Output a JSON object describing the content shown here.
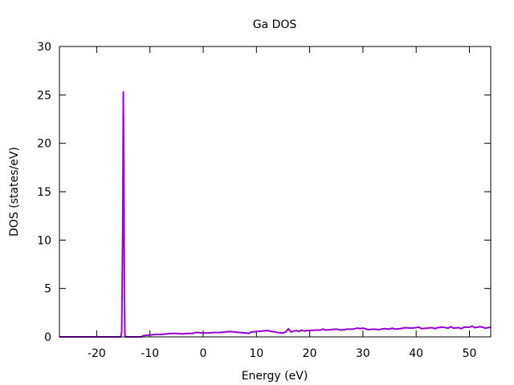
{
  "chart_data": {
    "type": "line",
    "title": "Ga DOS",
    "xlabel": "Energy (eV)",
    "ylabel": "DOS (states/eV)",
    "xlim": [
      -27,
      54
    ],
    "ylim": [
      0,
      30
    ],
    "xticks": [
      -20,
      -10,
      0,
      10,
      20,
      30,
      40,
      50
    ],
    "yticks": [
      0,
      5,
      10,
      15,
      20,
      25,
      30
    ],
    "xtick_labels": [
      "-20",
      "-10",
      "0",
      "10",
      "20",
      "30",
      "40",
      "50"
    ],
    "ytick_labels": [
      "0",
      "5",
      "10",
      "15",
      "20",
      "25",
      "30"
    ],
    "grid": false,
    "legend": "none",
    "series": [
      {
        "color": "#9400d3",
        "x": [
          -27,
          -15.5,
          -15.3,
          -15.1,
          -15.0,
          -14.9,
          -14.8,
          -14.7,
          -14.6,
          -14.5,
          -14.3,
          -11.6,
          -11.3,
          -11,
          -10,
          -9,
          -8,
          -7,
          -6,
          -5,
          -4,
          -3,
          -2,
          -1.5,
          -1,
          0,
          1,
          2,
          3,
          4,
          5,
          6,
          7,
          8,
          8.5,
          9,
          10,
          11,
          12,
          13,
          14,
          15,
          15.5,
          16,
          16.5,
          17,
          17.5,
          18,
          18.5,
          19,
          19.5,
          20,
          21,
          22,
          22.5,
          23,
          24,
          25,
          26,
          27,
          28,
          29,
          29.5,
          30,
          31,
          32,
          33,
          34,
          35,
          35.5,
          36,
          37,
          37.5,
          38,
          39,
          40,
          40.5,
          41,
          42,
          43,
          43.5,
          44,
          45,
          46,
          46.5,
          47,
          48,
          48.5,
          49,
          50,
          50.5,
          51,
          52,
          52.5,
          53,
          54
        ],
        "y": [
          0,
          0,
          0.5,
          12,
          25.3,
          18,
          4,
          0.3,
          0,
          0,
          0,
          0,
          0.1,
          0.15,
          0.2,
          0.25,
          0.25,
          0.3,
          0.35,
          0.35,
          0.3,
          0.35,
          0.35,
          0.45,
          0.45,
          0.4,
          0.4,
          0.45,
          0.45,
          0.5,
          0.55,
          0.5,
          0.45,
          0.4,
          0.35,
          0.5,
          0.55,
          0.6,
          0.65,
          0.55,
          0.45,
          0.4,
          0.5,
          0.85,
          0.5,
          0.6,
          0.65,
          0.55,
          0.7,
          0.6,
          0.65,
          0.65,
          0.7,
          0.7,
          0.8,
          0.7,
          0.75,
          0.8,
          0.7,
          0.8,
          0.8,
          0.9,
          0.85,
          0.9,
          0.75,
          0.8,
          0.75,
          0.85,
          0.8,
          0.9,
          0.8,
          0.85,
          0.9,
          0.95,
          0.9,
          0.95,
          1.0,
          0.85,
          0.9,
          0.95,
          0.85,
          0.95,
          1.0,
          0.9,
          1.05,
          0.9,
          0.95,
          0.85,
          1.0,
          1.0,
          1.1,
          0.95,
          1.05,
          1.0,
          0.9,
          1.0
        ]
      }
    ]
  }
}
